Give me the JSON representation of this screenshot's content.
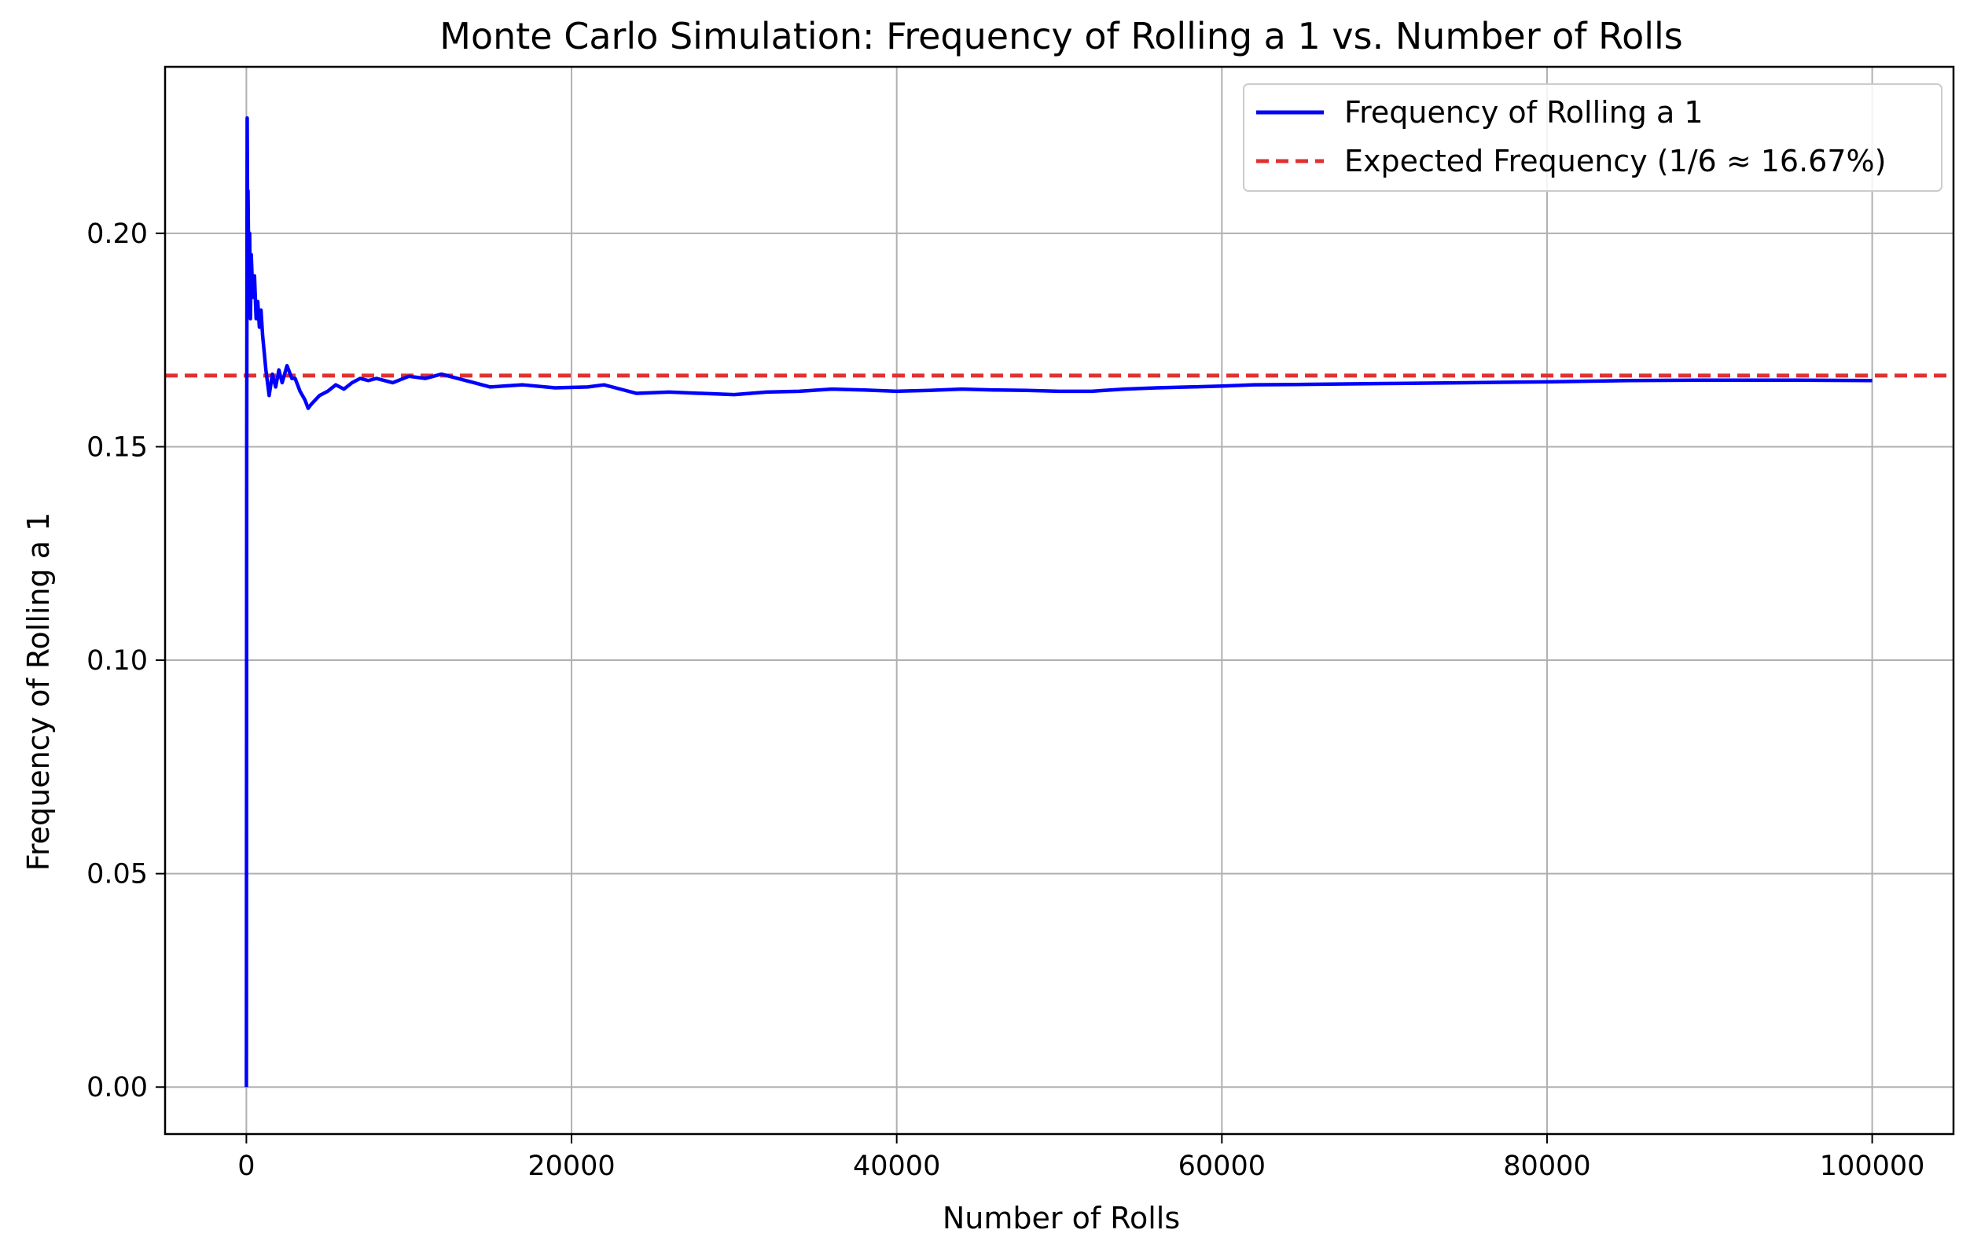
{
  "chart_data": {
    "type": "line",
    "title": "Monte Carlo Simulation: Frequency of Rolling a 1 vs. Number of Rolls",
    "xlabel": "Number of Rolls",
    "ylabel": "Frequency of Rolling a 1",
    "xlim": [
      -5000,
      105000
    ],
    "ylim": [
      -0.011,
      0.239
    ],
    "xticks": [
      0,
      20000,
      40000,
      60000,
      80000,
      100000
    ],
    "xtick_labels": [
      "0",
      "20000",
      "40000",
      "60000",
      "80000",
      "100000"
    ],
    "yticks": [
      0.0,
      0.05,
      0.1,
      0.15,
      0.2
    ],
    "ytick_labels": [
      "0.00",
      "0.05",
      "0.10",
      "0.15",
      "0.20"
    ],
    "grid": true,
    "legend_position": "top-right",
    "series": [
      {
        "name": "Frequency of Rolling a 1",
        "color": "#0000ff",
        "style": "solid",
        "x": [
          1,
          20,
          50,
          80,
          100,
          150,
          200,
          250,
          300,
          400,
          500,
          600,
          700,
          800,
          900,
          1000,
          1100,
          1200,
          1400,
          1600,
          1800,
          2000,
          2200,
          2500,
          2800,
          3000,
          3300,
          3600,
          3800,
          4000,
          4500,
          5000,
          5500,
          6000,
          6500,
          7000,
          7500,
          8000,
          9000,
          10000,
          11000,
          12000,
          13000,
          14000,
          15000,
          17000,
          19000,
          21000,
          22000,
          23000,
          24000,
          26000,
          28000,
          30000,
          32000,
          34000,
          36000,
          38000,
          40000,
          42000,
          44000,
          46000,
          48000,
          50000,
          52000,
          54000,
          56000,
          58000,
          60000,
          62000,
          65000,
          70000,
          75000,
          80000,
          85000,
          90000,
          95000,
          100000
        ],
        "values": [
          0.0,
          0.15,
          0.227,
          0.2,
          0.21,
          0.19,
          0.2,
          0.18,
          0.195,
          0.185,
          0.19,
          0.18,
          0.184,
          0.178,
          0.182,
          0.176,
          0.172,
          0.168,
          0.162,
          0.167,
          0.164,
          0.168,
          0.165,
          0.169,
          0.166,
          0.166,
          0.163,
          0.161,
          0.159,
          0.16,
          0.162,
          0.163,
          0.1645,
          0.1635,
          0.165,
          0.166,
          0.1655,
          0.166,
          0.165,
          0.1665,
          0.166,
          0.167,
          0.166,
          0.165,
          0.164,
          0.1645,
          0.1638,
          0.164,
          0.1645,
          0.1635,
          0.1625,
          0.1628,
          0.1625,
          0.1622,
          0.1628,
          0.163,
          0.1635,
          0.1633,
          0.163,
          0.1632,
          0.1635,
          0.1633,
          0.1632,
          0.163,
          0.163,
          0.1635,
          0.1638,
          0.164,
          0.1642,
          0.1645,
          0.1646,
          0.1648,
          0.165,
          0.1652,
          0.1655,
          0.1656,
          0.1656,
          0.1655
        ]
      },
      {
        "name": "Expected Frequency (1/6 ≈ 16.67%)",
        "color": "#e03131",
        "style": "dashed",
        "value": 0.16667
      }
    ]
  }
}
